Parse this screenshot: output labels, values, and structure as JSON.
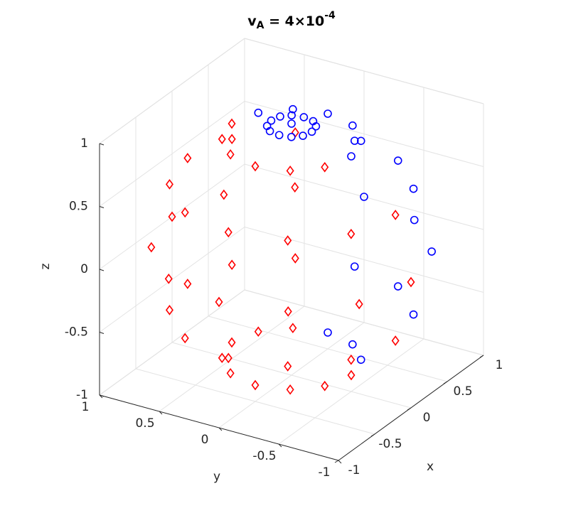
{
  "chart_data": {
    "type": "scatter3d",
    "title": [
      "v",
      "A",
      " = 4×10",
      "-4"
    ],
    "x_label": "x",
    "y_label": "y",
    "z_label": "z",
    "xlim": [
      -1,
      1
    ],
    "ylim": [
      -1,
      1
    ],
    "zlim": [
      -1,
      1
    ],
    "xticks": [
      -1,
      -0.5,
      0,
      0.5,
      1
    ],
    "yticks": [
      -1,
      -0.5,
      0,
      0.5,
      1
    ],
    "zticks": [
      -1,
      -0.5,
      0,
      0.5,
      1
    ],
    "grid": true,
    "series": [
      {
        "color": "#ff0000",
        "marker": "diamond",
        "x": [
          0.43,
          0.25,
          0,
          -0.25,
          -0.43,
          -0.5,
          -0.43,
          -0.25,
          0,
          0.76,
          0.43,
          0,
          -0.43,
          -0.76,
          -0.87,
          -0.76,
          -0.43,
          0,
          0.87,
          0.5,
          0,
          -0.5,
          -0.87,
          -1,
          -0.87,
          -0.5,
          0,
          0.76,
          0.43,
          0,
          -0.43,
          -0.76,
          -0.87,
          -0.76,
          -0.43,
          0,
          0,
          -0.25,
          -0.43,
          -0.5,
          -0.43,
          -0.25
        ],
        "y": [
          0.25,
          0.43,
          0.5,
          0.43,
          0.25,
          0,
          -0.25,
          -0.43,
          -0.5,
          0.43,
          0.76,
          0.87,
          0.76,
          0.43,
          0,
          -0.43,
          -0.76,
          -0.87,
          0.5,
          0.87,
          1,
          0.87,
          0.5,
          0,
          -0.5,
          -0.87,
          -1,
          0.43,
          0.76,
          0.87,
          0.76,
          0.43,
          0,
          -0.43,
          -0.76,
          -0.87,
          0.5,
          0.43,
          0.25,
          0,
          -0.25,
          -0.43
        ],
        "z": [
          -0.87,
          -0.87,
          -0.87,
          -0.87,
          -0.87,
          -0.87,
          -0.87,
          -0.87,
          -0.87,
          -0.5,
          -0.5,
          -0.5,
          -0.5,
          -0.5,
          -0.5,
          -0.5,
          -0.5,
          -0.5,
          0,
          0,
          0,
          0,
          0,
          0,
          0,
          0,
          0,
          0.5,
          0.5,
          0.5,
          0.5,
          0.5,
          0.5,
          0.5,
          0.5,
          0.5,
          0.87,
          0.87,
          0.87,
          0.87,
          0.87,
          0.87
        ]
      },
      {
        "color": "#0000ff",
        "marker": "circle",
        "x": [
          0.25,
          0.43,
          0.5,
          0.43,
          0.76,
          0.87,
          0.5,
          0.87,
          1,
          0.43,
          0.76,
          0.87,
          0,
          0.25,
          0.43,
          0.5,
          0.43,
          0.25,
          0.17,
          0.15,
          0.09,
          0,
          -0.09,
          -0.15,
          -0.17,
          -0.15,
          -0.09,
          0,
          0.09,
          0.15,
          0
        ],
        "y": [
          -0.43,
          -0.25,
          0,
          -0.76,
          -0.43,
          0,
          -0.87,
          -0.5,
          0,
          -0.76,
          -0.43,
          0,
          -0.5,
          -0.43,
          -0.25,
          0,
          0.25,
          0.43,
          0,
          0.09,
          0.15,
          0.17,
          0.15,
          0.09,
          0,
          -0.09,
          -0.15,
          -0.17,
          -0.15,
          -0.09,
          0
        ],
        "z": [
          -0.87,
          -0.87,
          -0.87,
          -0.5,
          -0.5,
          -0.5,
          0,
          0,
          0,
          0.5,
          0.5,
          0.5,
          0.87,
          0.87,
          0.87,
          0.87,
          0.87,
          0.87,
          0.98,
          0.98,
          0.98,
          0.98,
          0.98,
          0.98,
          0.98,
          0.98,
          0.98,
          0.98,
          0.98,
          0.98,
          1
        ]
      }
    ]
  }
}
